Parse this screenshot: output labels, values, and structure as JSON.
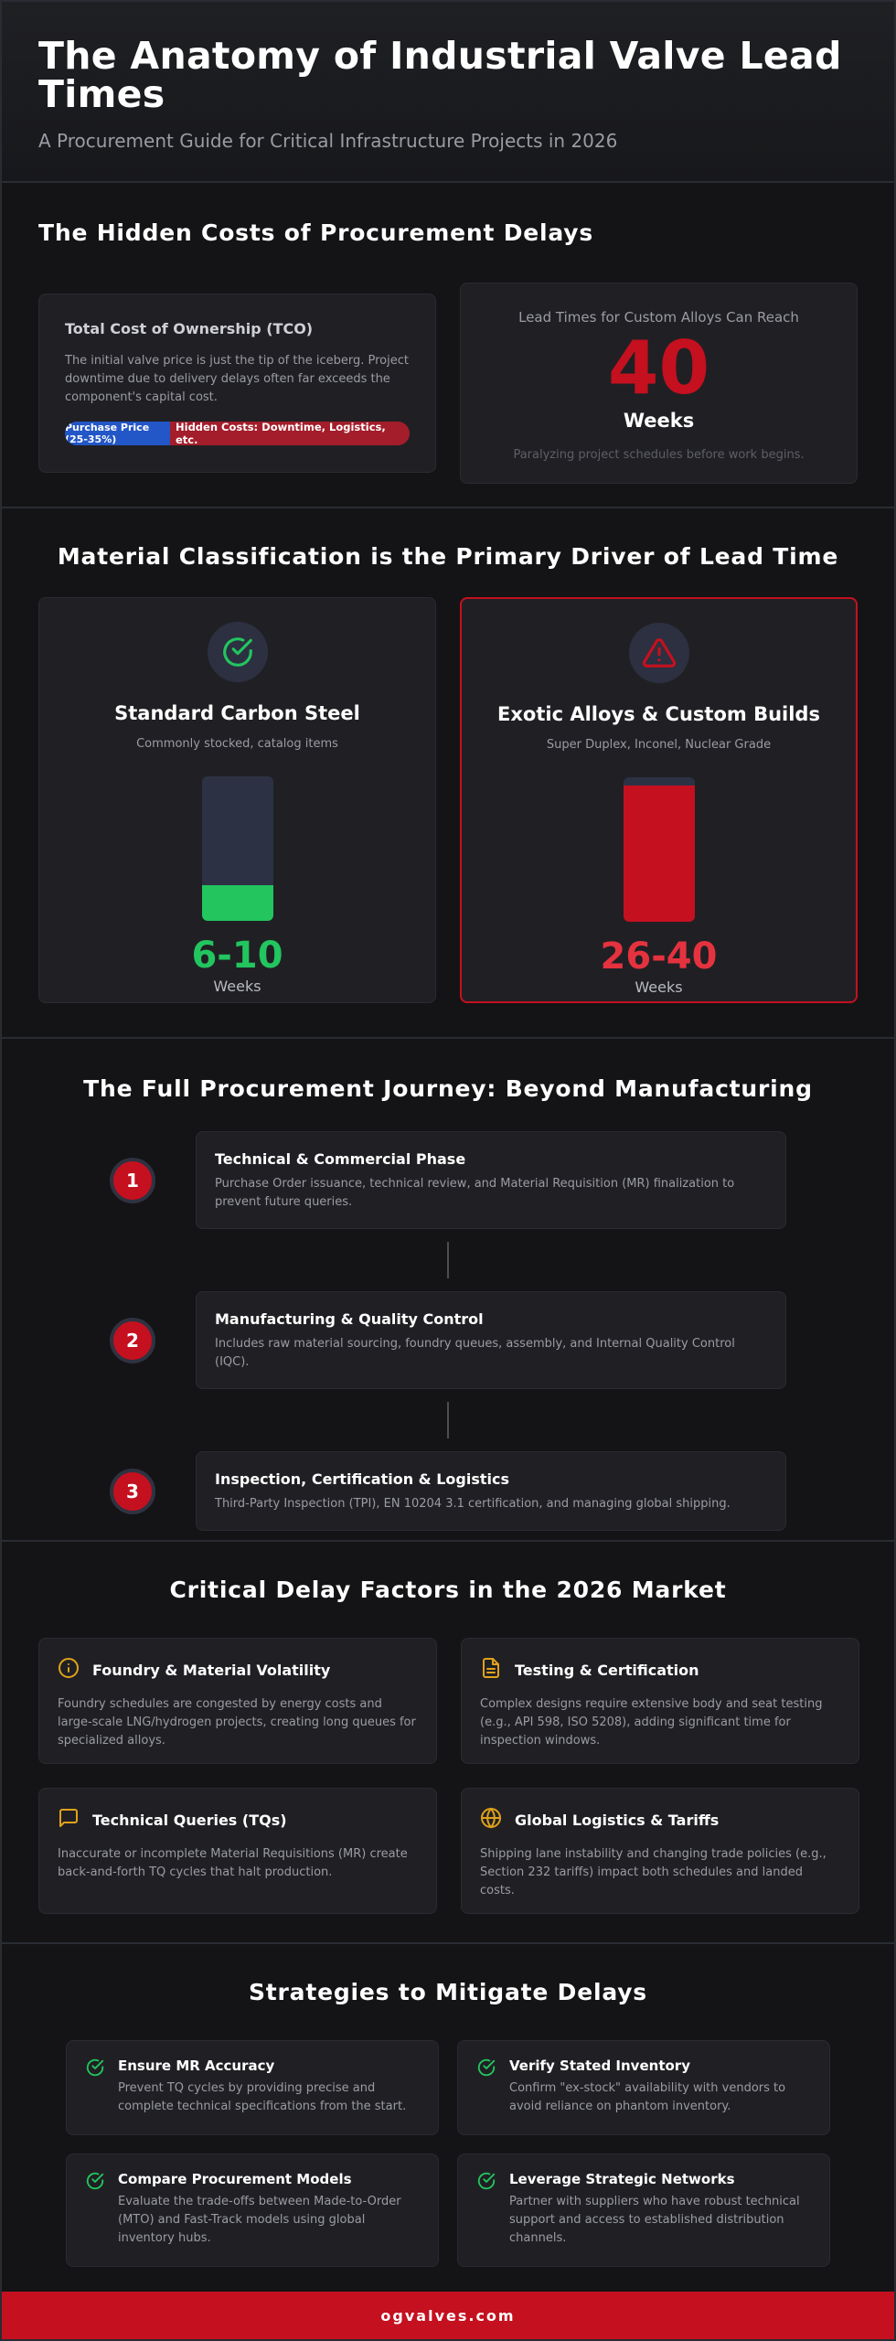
{
  "header": {
    "title": "The Anatomy of Industrial Valve Lead Times",
    "subtitle": "A Procurement Guide for Critical Infrastructure Projects in 2026"
  },
  "hidden_costs": {
    "title": "The Hidden Costs of Procurement Delays",
    "tco": {
      "title": "Total Cost of Ownership (TCO)",
      "description": "The initial valve price is just the tip of the iceberg. Project downtime due to delivery delays often far exceeds the component's capital cost.",
      "purchase_label": "Purchase Price (25-35%)",
      "hidden_label": "Hidden Costs: Downtime, Logistics, etc.",
      "purchase_share": 0.3
    },
    "lead": {
      "caption": "Lead Times for Custom Alloys Can Reach",
      "value": "40",
      "unit": "Weeks",
      "note": "Paralyzing project schedules before work begins."
    }
  },
  "materials": {
    "title": "Material Classification is the Primary Driver of Lead Time",
    "standard": {
      "name": "Standard Carbon Steel",
      "description": "Commonly stocked, catalog items",
      "range": "6-10",
      "unit": "Weeks",
      "fill_fraction": 0.25,
      "color": "#22c55e",
      "icon": "check-circle-icon"
    },
    "exotic": {
      "name": "Exotic Alloys & Custom Builds",
      "description": "Super Duplex, Inconel, Nuclear Grade",
      "range": "26-40",
      "unit": "Weeks",
      "fill_fraction": 0.94,
      "color": "#c5101f",
      "icon": "warning-icon"
    }
  },
  "journey": {
    "title": "The Full Procurement Journey: Beyond Manufacturing",
    "steps": [
      {
        "num": "1",
        "title": "Technical & Commercial Phase",
        "description": "Purchase Order issuance, technical review, and Material Requisition (MR) finalization to prevent future queries."
      },
      {
        "num": "2",
        "title": "Manufacturing & Quality Control",
        "description": "Includes raw material sourcing, foundry queues, assembly, and Internal Quality Control (IQC)."
      },
      {
        "num": "3",
        "title": "Inspection, Certification & Logistics",
        "description": "Third-Party Inspection (TPI), EN 10204 3.1 certification, and managing global shipping."
      }
    ]
  },
  "factors": {
    "title": "Critical Delay Factors in the 2026 Market",
    "items": [
      {
        "icon": "info-icon",
        "title": "Foundry & Material Volatility",
        "description": "Foundry schedules are congested by energy costs and large-scale LNG/hydrogen projects, creating long queues for specialized alloys."
      },
      {
        "icon": "document-icon",
        "title": "Testing & Certification",
        "description": "Complex designs require extensive body and seat testing (e.g., API 598, ISO 5208), adding significant time for inspection windows."
      },
      {
        "icon": "chat-icon",
        "title": "Technical Queries (TQs)",
        "description": "Inaccurate or incomplete Material Requisitions (MR) create back-and-forth TQ cycles that halt production."
      },
      {
        "icon": "globe-icon",
        "title": "Global Logistics & Tariffs",
        "description": "Shipping lane instability and changing trade policies (e.g., Section 232 tariffs) impact both schedules and landed costs."
      }
    ]
  },
  "strategies": {
    "title": "Strategies to Mitigate Delays",
    "items": [
      {
        "title": "Ensure MR Accuracy",
        "description": "Prevent TQ cycles by providing precise and complete technical specifications from the start."
      },
      {
        "title": "Verify Stated Inventory",
        "description": "Confirm \"ex-stock\" availability with vendors to avoid reliance on phantom inventory."
      },
      {
        "title": "Compare Procurement Models",
        "description": "Evaluate the trade-offs between Made-to-Order (MTO) and Fast-Track models using global inventory hubs."
      },
      {
        "title": "Leverage Strategic Networks",
        "description": "Partner with suppliers who have robust technical support and access to established distribution channels."
      }
    ]
  },
  "footer": {
    "text": "ogvalves.com"
  },
  "colors": {
    "accent_red": "#c5101f",
    "accent_green": "#22c55e",
    "accent_gold": "#e0a21b",
    "accent_blue": "#2356c6"
  }
}
